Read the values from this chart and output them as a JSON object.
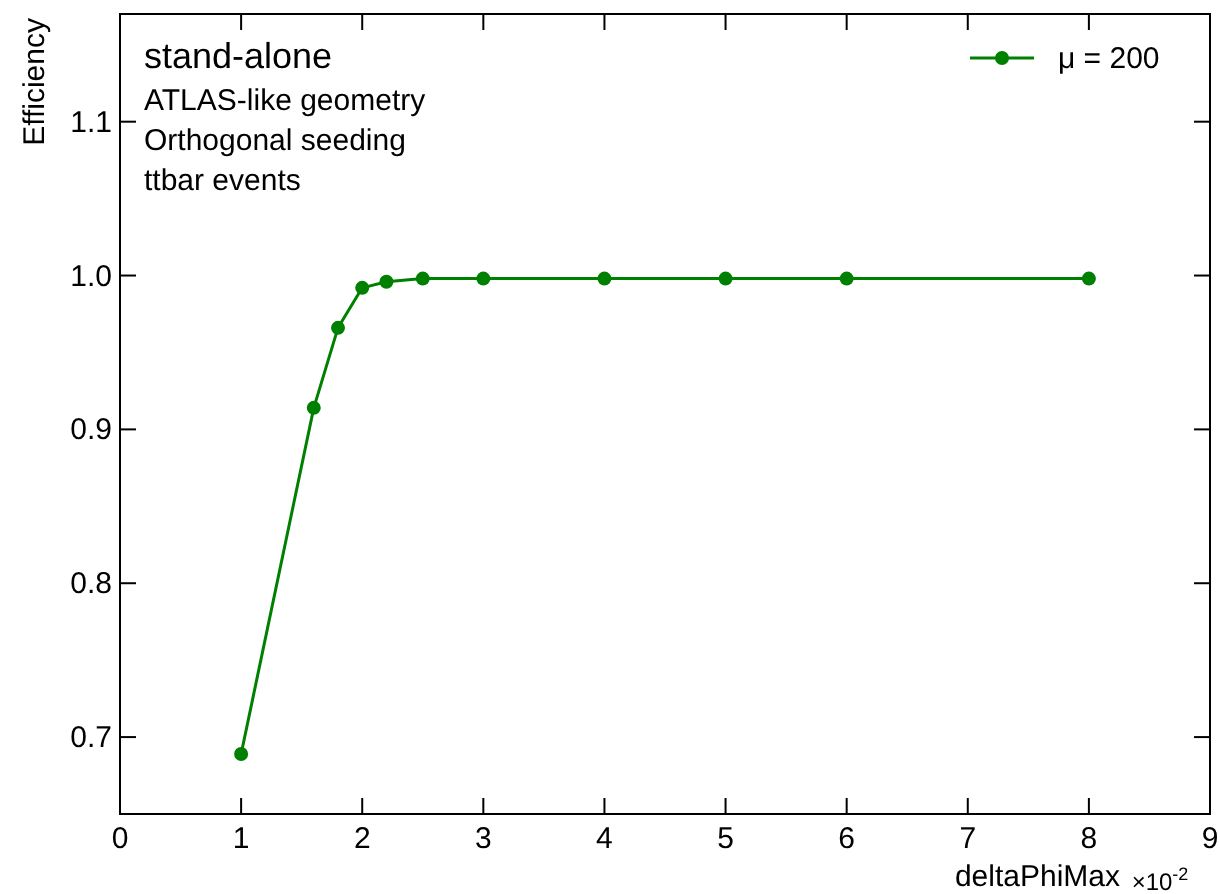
{
  "chart_data": {
    "type": "line",
    "title": "stand-alone",
    "xlabel": "deltaPhiMax",
    "ylabel": "Efficiency",
    "annotations": [
      "ATLAS-like geometry",
      "Orthogonal seeding",
      "ttbar events",
      "×10$^{-2}$"
    ],
    "x": [
      1,
      1.6,
      1.8,
      2.0,
      2.2,
      2.5,
      3,
      4,
      5,
      6,
      8
    ],
    "series": [
      {
        "name": "μ = 200",
        "color": "#008000",
        "values": [
          0.689,
          0.914,
          0.966,
          0.992,
          0.996,
          0.998,
          0.998,
          0.998,
          0.998,
          0.998,
          0.998
        ]
      }
    ],
    "xlim": [
      0,
      9
    ],
    "xticks": [
      0,
      1,
      2,
      3,
      4,
      5,
      6,
      7,
      8,
      9
    ],
    "ylim": [
      0.65,
      1.17
    ],
    "yticks": [
      0.7,
      0.8,
      0.9,
      {
        "value": 1,
        "label": "1.0"
      },
      1.1
    ],
    "grid": false,
    "legend": "top right",
    "marker": "circle",
    "line_style": "solid"
  }
}
